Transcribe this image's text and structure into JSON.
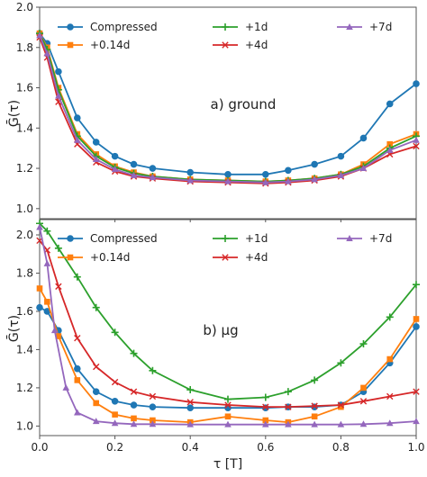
{
  "chart_data": [
    {
      "type": "line",
      "annotation": "a) ground",
      "ylabel": "Ḡ(τ)",
      "xlabel": "",
      "xlim": [
        0.0,
        1.0
      ],
      "ylim": [
        0.95,
        2.0
      ],
      "xticks": [
        0.0,
        0.2,
        0.4,
        0.6,
        0.8,
        1.0
      ],
      "yticks": [
        "1.0",
        "1.2",
        "1.4",
        "1.6",
        "1.8",
        "2.0"
      ],
      "ytick_values": [
        1.0,
        1.2,
        1.4,
        1.6,
        1.8,
        2.0
      ],
      "grid": false,
      "legend_placement": "top",
      "series": [
        {
          "name": "Compressed",
          "color": "#1f77b4",
          "marker": "circle",
          "x": [
            0.0,
            0.02,
            0.05,
            0.1,
            0.15,
            0.2,
            0.25,
            0.3,
            0.4,
            0.5,
            0.6,
            0.66,
            0.73,
            0.8,
            0.86,
            0.93,
            1.0
          ],
          "y": [
            1.87,
            1.82,
            1.68,
            1.45,
            1.33,
            1.26,
            1.22,
            1.2,
            1.18,
            1.17,
            1.17,
            1.19,
            1.22,
            1.26,
            1.35,
            1.52,
            1.62
          ]
        },
        {
          "name": "+0.14d",
          "color": "#ff7f0e",
          "marker": "square",
          "x": [
            0.0,
            0.02,
            0.05,
            0.1,
            0.15,
            0.2,
            0.25,
            0.3,
            0.4,
            0.5,
            0.6,
            0.66,
            0.73,
            0.8,
            0.86,
            0.93,
            1.0
          ],
          "y": [
            1.87,
            1.8,
            1.6,
            1.37,
            1.27,
            1.21,
            1.18,
            1.16,
            1.145,
            1.14,
            1.135,
            1.14,
            1.15,
            1.17,
            1.22,
            1.32,
            1.37
          ]
        },
        {
          "name": "+1d",
          "color": "#2ca02c",
          "marker": "plus",
          "x": [
            0.0,
            0.02,
            0.05,
            0.1,
            0.15,
            0.2,
            0.25,
            0.3,
            0.4,
            0.5,
            0.6,
            0.66,
            0.73,
            0.8,
            0.86,
            0.93,
            1.0
          ],
          "y": [
            1.87,
            1.79,
            1.59,
            1.36,
            1.26,
            1.205,
            1.175,
            1.16,
            1.145,
            1.14,
            1.135,
            1.14,
            1.15,
            1.17,
            1.21,
            1.3,
            1.36
          ]
        },
        {
          "name": "+4d",
          "color": "#d62728",
          "marker": "x",
          "x": [
            0.0,
            0.02,
            0.05,
            0.1,
            0.15,
            0.2,
            0.25,
            0.3,
            0.4,
            0.5,
            0.6,
            0.66,
            0.73,
            0.8,
            0.86,
            0.93,
            1.0
          ],
          "y": [
            1.85,
            1.75,
            1.53,
            1.32,
            1.23,
            1.185,
            1.16,
            1.15,
            1.135,
            1.13,
            1.125,
            1.13,
            1.14,
            1.16,
            1.2,
            1.27,
            1.31
          ]
        },
        {
          "name": "+7d",
          "color": "#9467bd",
          "marker": "triangle",
          "x": [
            0.0,
            0.02,
            0.05,
            0.1,
            0.15,
            0.2,
            0.25,
            0.3,
            0.4,
            0.5,
            0.6,
            0.66,
            0.73,
            0.8,
            0.86,
            0.93,
            1.0
          ],
          "y": [
            1.86,
            1.77,
            1.56,
            1.34,
            1.245,
            1.195,
            1.165,
            1.155,
            1.14,
            1.135,
            1.13,
            1.135,
            1.145,
            1.165,
            1.2,
            1.29,
            1.34
          ]
        }
      ]
    },
    {
      "type": "line",
      "annotation": "b) μg",
      "ylabel": "Ḡ(τ)",
      "xlabel": "τ [T]",
      "xlim": [
        0.0,
        1.0
      ],
      "ylim": [
        0.95,
        2.08
      ],
      "xticks": [
        0.0,
        0.2,
        0.4,
        0.6,
        0.8,
        1.0
      ],
      "xtick_labels": [
        "0.0",
        "0.2",
        "0.4",
        "0.6",
        "0.8",
        "1.0"
      ],
      "yticks": [
        "1.0",
        "1.2",
        "1.4",
        "1.6",
        "1.8",
        "2.0"
      ],
      "ytick_values": [
        1.0,
        1.2,
        1.4,
        1.6,
        1.8,
        2.0
      ],
      "grid": false,
      "legend_placement": "top",
      "series": [
        {
          "name": "Compressed",
          "color": "#1f77b4",
          "marker": "circle",
          "x": [
            0.0,
            0.02,
            0.05,
            0.1,
            0.15,
            0.2,
            0.25,
            0.3,
            0.4,
            0.5,
            0.6,
            0.66,
            0.73,
            0.8,
            0.86,
            0.93,
            1.0
          ],
          "y": [
            1.62,
            1.6,
            1.5,
            1.3,
            1.18,
            1.13,
            1.11,
            1.1,
            1.095,
            1.095,
            1.095,
            1.1,
            1.1,
            1.11,
            1.18,
            1.33,
            1.52
          ]
        },
        {
          "name": "+0.14d",
          "color": "#ff7f0e",
          "marker": "square",
          "x": [
            0.0,
            0.02,
            0.05,
            0.1,
            0.15,
            0.2,
            0.25,
            0.3,
            0.4,
            0.5,
            0.6,
            0.66,
            0.73,
            0.8,
            0.86,
            0.93,
            1.0
          ],
          "y": [
            1.72,
            1.65,
            1.47,
            1.24,
            1.12,
            1.06,
            1.04,
            1.03,
            1.02,
            1.05,
            1.03,
            1.02,
            1.05,
            1.1,
            1.2,
            1.35,
            1.56
          ]
        },
        {
          "name": "+1d",
          "color": "#2ca02c",
          "marker": "plus",
          "x": [
            0.0,
            0.02,
            0.05,
            0.1,
            0.15,
            0.2,
            0.25,
            0.3,
            0.4,
            0.5,
            0.6,
            0.66,
            0.73,
            0.8,
            0.86,
            0.93,
            1.0
          ],
          "y": [
            2.06,
            2.02,
            1.93,
            1.78,
            1.62,
            1.49,
            1.38,
            1.29,
            1.19,
            1.14,
            1.15,
            1.18,
            1.24,
            1.33,
            1.43,
            1.57,
            1.74
          ]
        },
        {
          "name": "+4d",
          "color": "#d62728",
          "marker": "x",
          "x": [
            0.0,
            0.02,
            0.05,
            0.1,
            0.15,
            0.2,
            0.25,
            0.3,
            0.4,
            0.5,
            0.6,
            0.66,
            0.73,
            0.8,
            0.86,
            0.93,
            1.0
          ],
          "y": [
            1.97,
            1.92,
            1.73,
            1.46,
            1.31,
            1.23,
            1.18,
            1.155,
            1.125,
            1.11,
            1.1,
            1.1,
            1.105,
            1.11,
            1.13,
            1.155,
            1.18
          ]
        },
        {
          "name": "+7d",
          "color": "#9467bd",
          "marker": "triangle",
          "x": [
            0.0,
            0.02,
            0.04,
            0.07,
            0.1,
            0.15,
            0.2,
            0.25,
            0.3,
            0.4,
            0.5,
            0.6,
            0.66,
            0.73,
            0.8,
            0.86,
            0.93,
            1.0
          ],
          "y": [
            2.04,
            1.85,
            1.5,
            1.2,
            1.07,
            1.025,
            1.015,
            1.01,
            1.01,
            1.008,
            1.008,
            1.008,
            1.008,
            1.008,
            1.008,
            1.01,
            1.015,
            1.025
          ]
        }
      ]
    }
  ]
}
